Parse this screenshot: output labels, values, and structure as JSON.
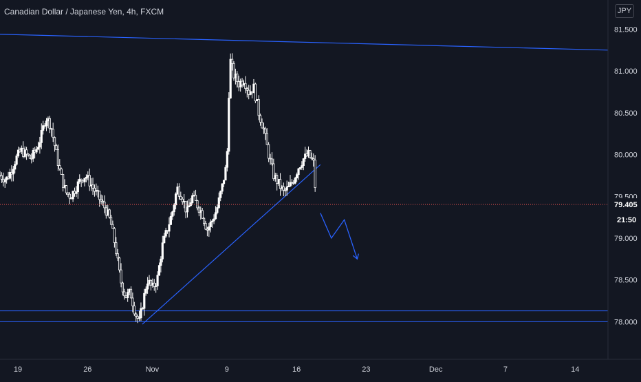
{
  "header": {
    "symbol_title": "Canadian Dollar / Japanese Yen, 4h, FXCM",
    "currency_button": "JPY"
  },
  "price_scale": {
    "last_price_label": "79.405",
    "countdown_label": "21:50"
  },
  "colors": {
    "background": "#131722",
    "candle": "#ffffff",
    "trendline": "#2962ff",
    "last_price_line": "#ef5350",
    "axis_text": "#d1d4dc"
  },
  "chart_data": {
    "type": "candlestick",
    "title": "Canadian Dollar / Japanese Yen, 4h, FXCM",
    "x_ticks": [
      "19",
      "26",
      "Nov",
      "9",
      "16",
      "23",
      "Dec",
      "7",
      "14"
    ],
    "x_tick_days": [
      18,
      25,
      31.5,
      39,
      46,
      53,
      60,
      67,
      74
    ],
    "x_range_days": [
      16.2,
      77.3
    ],
    "y_ticks": [
      78.0,
      78.5,
      79.0,
      79.5,
      80.0,
      80.5,
      81.0,
      81.5
    ],
    "y_tick_labels": [
      "78.000",
      "78.500",
      "79.000",
      "79.500",
      "80.000",
      "80.500",
      "81.000",
      "81.500"
    ],
    "ylim": [
      77.55,
      81.85
    ],
    "last_price": 79.405,
    "price_path": [
      [
        16.2,
        79.75
      ],
      [
        16.8,
        79.7
      ],
      [
        17.3,
        79.8
      ],
      [
        17.8,
        79.95
      ],
      [
        18.3,
        80.05
      ],
      [
        18.8,
        80.0
      ],
      [
        19.3,
        79.95
      ],
      [
        19.8,
        80.05
      ],
      [
        20.3,
        80.2
      ],
      [
        20.8,
        80.45
      ],
      [
        21.3,
        80.35
      ],
      [
        21.8,
        80.05
      ],
      [
        22.3,
        79.75
      ],
      [
        22.8,
        79.55
      ],
      [
        23.3,
        79.5
      ],
      [
        23.8,
        79.6
      ],
      [
        24.3,
        79.7
      ],
      [
        24.8,
        79.75
      ],
      [
        25.3,
        79.65
      ],
      [
        25.8,
        79.55
      ],
      [
        26.3,
        79.45
      ],
      [
        26.8,
        79.35
      ],
      [
        27.3,
        79.2
      ],
      [
        27.8,
        78.9
      ],
      [
        28.3,
        78.5
      ],
      [
        28.8,
        78.3
      ],
      [
        29.3,
        78.35
      ],
      [
        29.8,
        78.1
      ],
      [
        30.2,
        78.0
      ],
      [
        30.6,
        78.25
      ],
      [
        31.0,
        78.5
      ],
      [
        31.5,
        78.4
      ],
      [
        32.0,
        78.5
      ],
      [
        32.5,
        78.9
      ],
      [
        33.0,
        79.1
      ],
      [
        33.5,
        79.3
      ],
      [
        34.0,
        79.6
      ],
      [
        34.5,
        79.5
      ],
      [
        35.0,
        79.3
      ],
      [
        35.5,
        79.5
      ],
      [
        36.0,
        79.4
      ],
      [
        36.5,
        79.3
      ],
      [
        37.0,
        79.1
      ],
      [
        37.5,
        79.2
      ],
      [
        38.0,
        79.35
      ],
      [
        38.5,
        79.6
      ],
      [
        39.0,
        79.9
      ],
      [
        39.3,
        81.15
      ],
      [
        39.7,
        80.95
      ],
      [
        40.2,
        80.85
      ],
      [
        40.7,
        80.9
      ],
      [
        41.2,
        80.75
      ],
      [
        41.7,
        80.8
      ],
      [
        42.2,
        80.5
      ],
      [
        42.7,
        80.3
      ],
      [
        43.2,
        80.0
      ],
      [
        43.7,
        79.75
      ],
      [
        44.2,
        79.65
      ],
      [
        44.7,
        79.55
      ],
      [
        45.2,
        79.6
      ],
      [
        45.7,
        79.7
      ],
      [
        46.2,
        79.85
      ],
      [
        46.7,
        79.95
      ],
      [
        47.2,
        80.0
      ],
      [
        47.7,
        79.9
      ],
      [
        48.0,
        79.4
      ]
    ],
    "trendlines": [
      {
        "from": [
          16.2,
          81.44
        ],
        "to": [
          77.3,
          81.25
        ]
      },
      {
        "from": [
          30.5,
          77.97
        ],
        "to": [
          48.4,
          79.88
        ]
      }
    ],
    "horizontal_lines": [
      78.13,
      78.0
    ],
    "projection_path": [
      [
        48.4,
        79.3
      ],
      [
        49.5,
        79.0
      ],
      [
        50.8,
        79.22
      ],
      [
        52.1,
        78.75
      ]
    ]
  }
}
